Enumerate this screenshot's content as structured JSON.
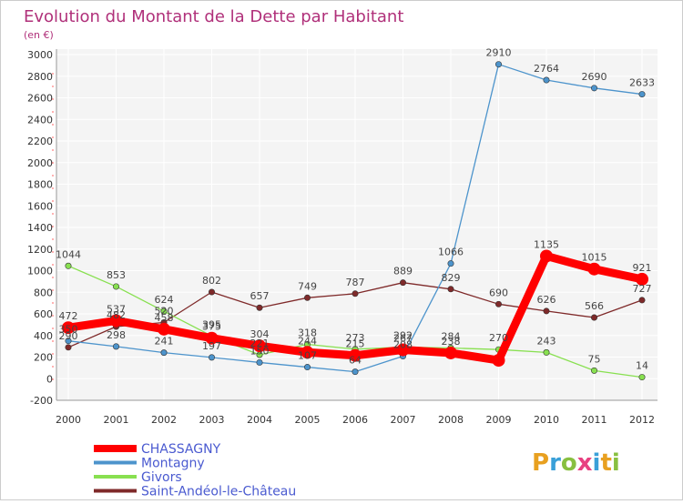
{
  "chart_data": {
    "type": "line",
    "title": "Evolution du Montant de la Dette par Habitant",
    "subtitle": "(en €)",
    "categories": [
      "2000",
      "2001",
      "2002",
      "2003",
      "2004",
      "2005",
      "2006",
      "2007",
      "2008",
      "2009",
      "2010",
      "2011",
      "2012"
    ],
    "ylim": [
      -200,
      3000
    ],
    "yticks": [
      -200,
      0,
      200,
      400,
      600,
      800,
      1000,
      1200,
      1400,
      1600,
      1800,
      2000,
      2200,
      2400,
      2600,
      2800,
      3000
    ],
    "grid": true,
    "legend_position": "bottom-left",
    "series": [
      {
        "name": "CHASSAGNY",
        "color": "#ff0000",
        "emphasis": true,
        "values": [
          472,
          537,
          458,
          375,
          304,
          244,
          215,
          267,
          238,
          170,
          1135,
          1015,
          921
        ]
      },
      {
        "name": "Montagny",
        "color": "#4d94cc",
        "values": [
          350,
          298,
          241,
          197,
          150,
          107,
          64,
          208,
          1066,
          2910,
          2764,
          2690,
          2633
        ]
      },
      {
        "name": "Givors",
        "color": "#88e050",
        "values": [
          1044,
          853,
          624,
          395,
          221,
          318,
          273,
          292,
          284,
          270,
          243,
          75,
          14
        ]
      },
      {
        "name": "Saint-Andéol-le-Château",
        "color": "#7f2a2a",
        "values": [
          290,
          482,
          520,
          802,
          657,
          749,
          787,
          889,
          829,
          690,
          626,
          566,
          727
        ]
      }
    ],
    "data_labels": [
      {
        "text": "472",
        "x": "2000",
        "y": 472,
        "series": 0
      },
      {
        "text": "537",
        "x": "2001",
        "y": 537,
        "series": 0
      },
      {
        "text": "458",
        "x": "2002",
        "y": 458,
        "series": 0
      },
      {
        "text": "375",
        "x": "2003",
        "y": 375,
        "series": 0
      },
      {
        "text": "304",
        "x": "2004",
        "y": 304,
        "series": 0
      },
      {
        "text": "244",
        "x": "2005",
        "y": 244,
        "series": 0
      },
      {
        "text": "215",
        "x": "2006",
        "y": 215,
        "series": 0
      },
      {
        "text": "267",
        "x": "2007",
        "y": 267,
        "series": 0
      },
      {
        "text": "238",
        "x": "2008",
        "y": 238,
        "series": 0
      },
      {
        "text": "1135",
        "x": "2010",
        "y": 1135,
        "series": 0
      },
      {
        "text": "1015",
        "x": "2011",
        "y": 1015,
        "series": 0
      },
      {
        "text": "921",
        "x": "2012",
        "y": 921,
        "series": 0
      },
      {
        "text": "350",
        "x": "2000",
        "y": 350,
        "series": 1
      },
      {
        "text": "298",
        "x": "2001",
        "y": 298,
        "series": 1
      },
      {
        "text": "241",
        "x": "2002",
        "y": 241,
        "series": 1
      },
      {
        "text": "197",
        "x": "2003",
        "y": 197,
        "series": 1
      },
      {
        "text": "150",
        "x": "2004",
        "y": 150,
        "series": 1
      },
      {
        "text": "107",
        "x": "2005",
        "y": 107,
        "series": 1
      },
      {
        "text": "64",
        "x": "2006",
        "y": 64,
        "series": 1
      },
      {
        "text": "208",
        "x": "2007",
        "y": 208,
        "series": 1
      },
      {
        "text": "1066",
        "x": "2008",
        "y": 1066,
        "series": 1
      },
      {
        "text": "2910",
        "x": "2009",
        "y": 2910,
        "series": 1
      },
      {
        "text": "2764",
        "x": "2010",
        "y": 2764,
        "series": 1
      },
      {
        "text": "2690",
        "x": "2011",
        "y": 2690,
        "series": 1
      },
      {
        "text": "2633",
        "x": "2012",
        "y": 2633,
        "series": 1
      },
      {
        "text": "1044",
        "x": "2000",
        "y": 1044,
        "series": 2
      },
      {
        "text": "853",
        "x": "2001",
        "y": 853,
        "series": 2
      },
      {
        "text": "624",
        "x": "2002",
        "y": 624,
        "series": 2
      },
      {
        "text": "395",
        "x": "2003",
        "y": 395,
        "series": 2
      },
      {
        "text": "221",
        "x": "2004",
        "y": 221,
        "series": 2
      },
      {
        "text": "318",
        "x": "2005",
        "y": 318,
        "series": 2
      },
      {
        "text": "273",
        "x": "2006",
        "y": 273,
        "series": 2
      },
      {
        "text": "292",
        "x": "2007",
        "y": 292,
        "series": 2
      },
      {
        "text": "284",
        "x": "2008",
        "y": 284,
        "series": 2
      },
      {
        "text": "270",
        "x": "2009",
        "y": 270,
        "series": 2
      },
      {
        "text": "243",
        "x": "2010",
        "y": 243,
        "series": 2
      },
      {
        "text": "75",
        "x": "2011",
        "y": 75,
        "series": 2
      },
      {
        "text": "14",
        "x": "2012",
        "y": 14,
        "series": 2
      },
      {
        "text": "290",
        "x": "2000",
        "y": 290,
        "series": 3
      },
      {
        "text": "482",
        "x": "2001",
        "y": 482,
        "series": 3
      },
      {
        "text": "520",
        "x": "2002",
        "y": 520,
        "series": 3
      },
      {
        "text": "802",
        "x": "2003",
        "y": 802,
        "series": 3
      },
      {
        "text": "657",
        "x": "2004",
        "y": 657,
        "series": 3
      },
      {
        "text": "749",
        "x": "2005",
        "y": 749,
        "series": 3
      },
      {
        "text": "787",
        "x": "2006",
        "y": 787,
        "series": 3
      },
      {
        "text": "889",
        "x": "2007",
        "y": 889,
        "series": 3
      },
      {
        "text": "829",
        "x": "2008",
        "y": 829,
        "series": 3
      },
      {
        "text": "690",
        "x": "2009",
        "y": 690,
        "series": 3
      },
      {
        "text": "626",
        "x": "2010",
        "y": 626,
        "series": 3
      },
      {
        "text": "566",
        "x": "2011",
        "y": 566,
        "series": 3
      },
      {
        "text": "727",
        "x": "2012",
        "y": 727,
        "series": 3
      }
    ]
  },
  "logo": {
    "text": "Proxiti"
  }
}
